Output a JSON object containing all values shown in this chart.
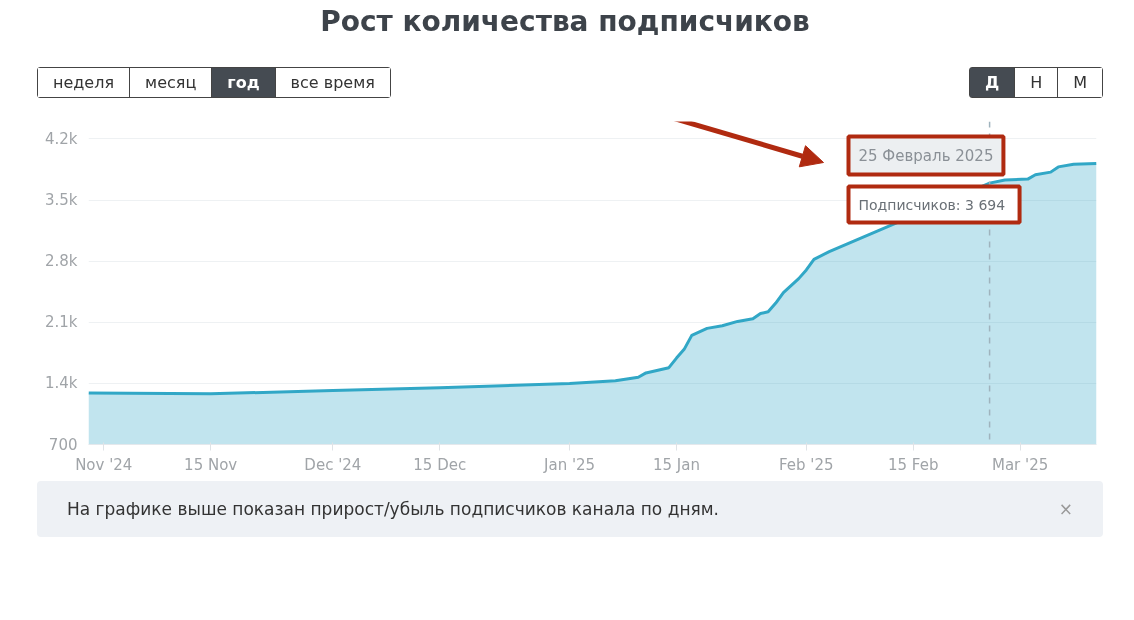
{
  "chart_data": {
    "type": "area",
    "title": "Рост количества подписчиков",
    "x": [
      "2024-10-30",
      "2024-11-15",
      "2024-12-01",
      "2024-12-15",
      "2025-01-01",
      "2025-01-07",
      "2025-01-10",
      "2025-01-11",
      "2025-01-14",
      "2025-01-15",
      "2025-01-16",
      "2025-01-17",
      "2025-01-19",
      "2025-01-21",
      "2025-01-23",
      "2025-01-25",
      "2025-01-26",
      "2025-01-27",
      "2025-01-28",
      "2025-01-29",
      "2025-01-31",
      "2025-02-01",
      "2025-02-02",
      "2025-02-04",
      "2025-02-25",
      "2025-02-27",
      "2025-03-02",
      "2025-03-03",
      "2025-03-05",
      "2025-03-06",
      "2025-03-08",
      "2025-03-11"
    ],
    "series": [
      {
        "color": "#31a7c6",
        "values": [
          1290,
          1280,
          1320,
          1350,
          1400,
          1430,
          1470,
          1520,
          1580,
          1690,
          1790,
          1950,
          2030,
          2060,
          2110,
          2140,
          2200,
          2220,
          2320,
          2440,
          2600,
          2700,
          2820,
          2910,
          3694,
          3730,
          3740,
          3790,
          3820,
          3880,
          3910,
          3920
        ]
      }
    ],
    "xlim": [
      "2024-10-30",
      "2025-03-11"
    ],
    "xticks": [
      {
        "value": "2024-11-01",
        "label": "Nov '24"
      },
      {
        "value": "2024-11-15",
        "label": "15 Nov"
      },
      {
        "value": "2024-12-01",
        "label": "Dec '24"
      },
      {
        "value": "2024-12-15",
        "label": "15 Dec"
      },
      {
        "value": "2025-01-01",
        "label": "Jan '25"
      },
      {
        "value": "2025-01-15",
        "label": "15 Jan"
      },
      {
        "value": "2025-02-01",
        "label": "Feb '25"
      },
      {
        "value": "2025-02-15",
        "label": "15 Feb"
      },
      {
        "value": "2025-03-01",
        "label": "Mar '25"
      }
    ],
    "ylim": [
      700,
      4400
    ],
    "yticks": [
      700,
      {
        "value": 1400,
        "label": "1.4k"
      },
      {
        "value": 2100,
        "label": "2.1k"
      },
      {
        "value": 2800,
        "label": "2.8k"
      },
      {
        "value": 3500,
        "label": "3.5k"
      },
      {
        "value": 4200,
        "label": "4.2k"
      }
    ],
    "grid": "y",
    "line_style": "solid",
    "ref_lines": [
      {
        "axis": "x",
        "value": "2025-02-25",
        "color": "#9fb3bd",
        "line_style": "dashed"
      }
    ],
    "annotations": [
      "неделя",
      "месяц",
      "год",
      "все время",
      "Д",
      "Н",
      "М",
      "25 Февраль 2025",
      "Подписчиков:  3 694",
      "На графике выше показан прирост/убыль подписчиков канала по дням.",
      "×"
    ]
  }
}
